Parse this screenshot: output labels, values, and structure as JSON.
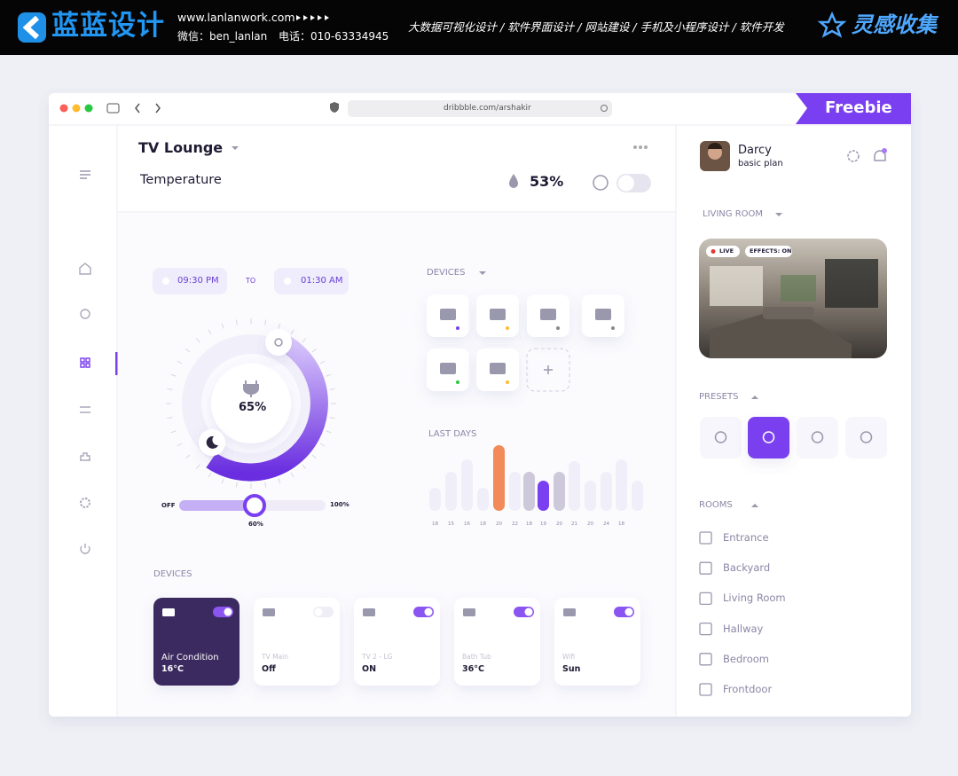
{
  "banner": {
    "logo": "蓝蓝设计",
    "url": "www.lanlanwork.com",
    "wechat": "微信：ben_lanlan",
    "phone": "电话：010-63334945",
    "services": "大数据可视化设计  /  软件界面设计  /  网站建设  /  手机及小程序设计  /  软件开发",
    "brand": "灵感收集"
  },
  "browser": {
    "url": "dribbble.com/arshakir",
    "badge": "Freebie"
  },
  "header": {
    "room": "TV Lounge",
    "label": "Temperature",
    "humidity": "53%"
  },
  "timer": {
    "start": "09:30 PM",
    "to": "TO",
    "end": "01:30 AM"
  },
  "dial": {
    "value": "65%"
  },
  "slider": {
    "min": "OFF",
    "max": "100%",
    "value": "60%"
  },
  "devices": {
    "title": "DEVICES"
  },
  "last_days": {
    "title": "LAST DAYS",
    "labels": [
      "18",
      "15",
      "16",
      "18",
      "20",
      "22",
      "18",
      "19",
      "20",
      "21",
      "20",
      "24",
      "18"
    ]
  },
  "cards": {
    "title": "DEVICES",
    "items": [
      {
        "name": "Air Condition",
        "value": "16°C"
      },
      {
        "name": "TV Main",
        "value": "Off"
      },
      {
        "name": "TV 2 - LG",
        "value": "ON"
      },
      {
        "name": "Bath Tub",
        "value": "36°C"
      },
      {
        "name": "Wifi",
        "value": "Sun"
      }
    ]
  },
  "profile": {
    "name": "Darcy",
    "plan": "basic plan"
  },
  "living_room": {
    "title": "LIVING ROOM",
    "live": "LIVE",
    "effects": "EFFECTS: ON"
  },
  "presets": {
    "title": "PRESETS"
  },
  "rooms": {
    "title": "ROOMS",
    "items": [
      "Entrance",
      "Backyard",
      "Living Room",
      "Hallway",
      "Bedroom",
      "Frontdoor"
    ]
  }
}
